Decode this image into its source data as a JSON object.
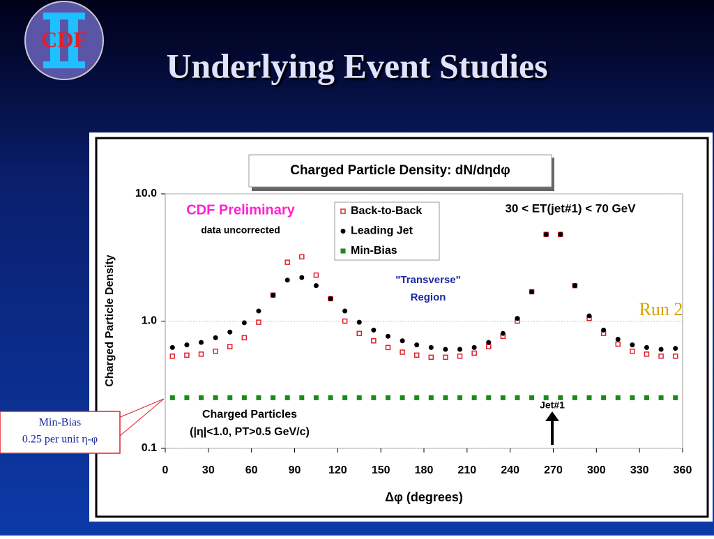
{
  "slide_title": "Underlying Event Studies",
  "logo": "CDF",
  "chart_data": {
    "type": "scatter",
    "title": "Charged Particle Density: dN/dηdφ",
    "x_label": "Δφ  (degrees)",
    "y_label": "Charged Particle Density",
    "xlim": [
      0,
      360
    ],
    "xticks": [
      0,
      30,
      60,
      90,
      120,
      150,
      180,
      210,
      240,
      270,
      300,
      330,
      360
    ],
    "ylim": [
      0.1,
      10
    ],
    "yticks": [
      0.1,
      {
        "value": 1,
        "label": "1.0"
      },
      {
        "value": 10,
        "label": "10.0"
      }
    ],
    "log_y": true,
    "grid": true,
    "legend": "top",
    "x": [
      5,
      15,
      25,
      35,
      45,
      55,
      65,
      75,
      85,
      95,
      105,
      115,
      125,
      135,
      145,
      155,
      165,
      175,
      185,
      195,
      205,
      215,
      225,
      235,
      245,
      255,
      265,
      275,
      285,
      295,
      305,
      315,
      325,
      335,
      345,
      355
    ],
    "series": [
      {
        "name": "Back-to-Back",
        "color": "#e0202a",
        "marker": "square-open",
        "values": [
          0.53,
          0.54,
          0.55,
          0.58,
          0.63,
          0.74,
          0.98,
          1.6,
          2.9,
          3.2,
          2.3,
          1.5,
          1.0,
          0.8,
          0.7,
          0.62,
          0.57,
          0.54,
          0.52,
          0.52,
          0.53,
          0.56,
          0.63,
          0.76,
          1.0,
          1.7,
          4.8,
          4.8,
          1.9,
          1.05,
          0.8,
          0.66,
          0.58,
          0.55,
          0.53,
          0.53
        ]
      },
      {
        "name": "Leading Jet",
        "color": "#000000",
        "marker": "circle",
        "values": [
          0.62,
          0.65,
          0.68,
          0.74,
          0.82,
          0.97,
          1.2,
          1.6,
          2.1,
          2.2,
          1.9,
          1.5,
          1.2,
          0.98,
          0.85,
          0.76,
          0.7,
          0.65,
          0.62,
          0.6,
          0.6,
          0.62,
          0.68,
          0.8,
          1.05,
          1.7,
          4.8,
          4.8,
          1.9,
          1.1,
          0.85,
          0.72,
          0.65,
          0.62,
          0.6,
          0.61
        ]
      },
      {
        "name": "Min-Bias",
        "color": "#1a8a1a",
        "marker": "square",
        "values": [
          0.25,
          0.25,
          0.25,
          0.25,
          0.25,
          0.25,
          0.25,
          0.25,
          0.25,
          0.25,
          0.25,
          0.25,
          0.25,
          0.25,
          0.25,
          0.25,
          0.25,
          0.25,
          0.25,
          0.25,
          0.25,
          0.25,
          0.25,
          0.25,
          0.25,
          0.25,
          0.25,
          0.25,
          0.25,
          0.25,
          0.25,
          0.25,
          0.25,
          0.25,
          0.25,
          0.25
        ]
      }
    ],
    "annotations": [
      "CDF Preliminary",
      "data uncorrected",
      "30 < ET(jet#1) < 70 GeV",
      "\"Transverse\"",
      "Region",
      "Run 2",
      "Charged Particles",
      "(|η|<1.0, PT>0.5 GeV/c)",
      "Jet#1",
      "Min-Bias",
      "0.25 per unit η-φ"
    ]
  }
}
